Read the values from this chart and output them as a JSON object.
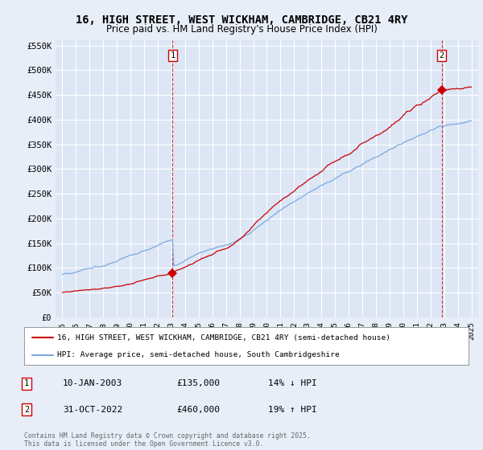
{
  "title": "16, HIGH STREET, WEST WICKHAM, CAMBRIDGE, CB21 4RY",
  "subtitle": "Price paid vs. HM Land Registry's House Price Index (HPI)",
  "bg_color": "#e8eef8",
  "plot_bg_color": "#dce6f5",
  "grid_color": "#ffffff",
  "red_color": "#cc0000",
  "blue_color": "#7aaadd",
  "sale1_year": 2003.05,
  "sale1_price": 135000,
  "sale2_year": 2022.83,
  "sale2_price": 460000,
  "ytick_labels": [
    "£0",
    "£50K",
    "£100K",
    "£150K",
    "£200K",
    "£250K",
    "£300K",
    "£350K",
    "£400K",
    "£450K",
    "£500K",
    "£550K"
  ],
  "ytick_values": [
    0,
    50000,
    100000,
    150000,
    200000,
    250000,
    300000,
    350000,
    400000,
    450000,
    500000,
    550000
  ],
  "legend1": "16, HIGH STREET, WEST WICKHAM, CAMBRIDGE, CB21 4RY (semi-detached house)",
  "legend2": "HPI: Average price, semi-detached house, South Cambridgeshire",
  "annot1_date": "10-JAN-2003",
  "annot1_price": "£135,000",
  "annot1_hpi": "14% ↓ HPI",
  "annot2_date": "31-OCT-2022",
  "annot2_price": "£460,000",
  "annot2_hpi": "19% ↑ HPI",
  "footer": "Contains HM Land Registry data © Crown copyright and database right 2025.\nThis data is licensed under the Open Government Licence v3.0."
}
